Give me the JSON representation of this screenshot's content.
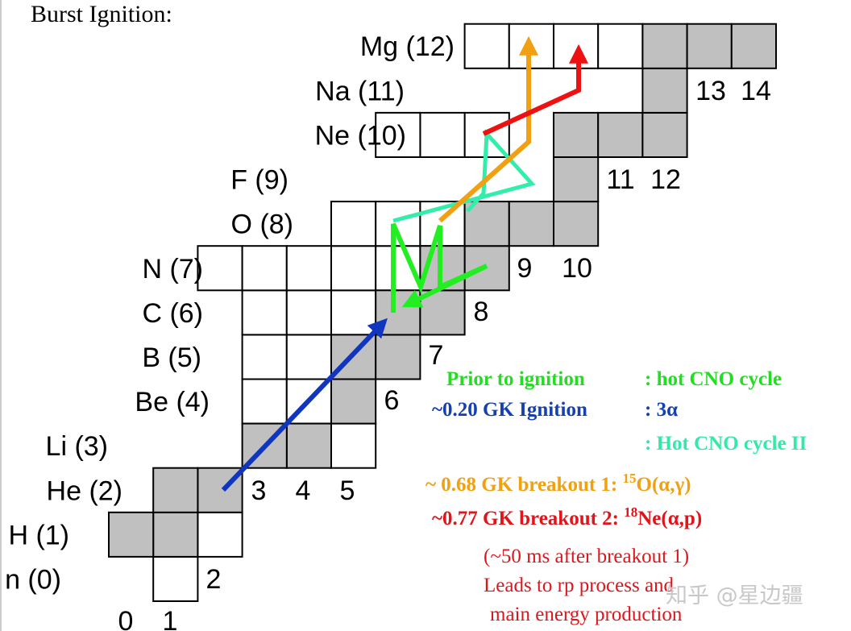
{
  "title": "Burst Ignition:",
  "element_labels": [
    "n (0)",
    "H (1)",
    "He (2)",
    "Li (3)",
    "Be (4)",
    "B (5)",
    "C (6)",
    "N (7)",
    "O (8)",
    "F (9)",
    "Ne (10)",
    "Na (11)",
    "Mg (12)"
  ],
  "neutron_labels": [
    "0",
    "1",
    "2",
    "3",
    "4",
    "5",
    "6",
    "7",
    "8",
    "9",
    "10",
    "11",
    "12",
    "13",
    "14"
  ],
  "legend": [
    {
      "text": "Prior to ignition",
      "desc": ": hot CNO cycle",
      "color": "#22dd22"
    },
    {
      "text": "~0.20 GK Ignition",
      "desc": ": 3α",
      "color": "#1540b0"
    },
    {
      "text": "",
      "desc": ": Hot CNO cycle II",
      "color": "#33e8a8"
    },
    {
      "text": "~ 0.68 GK breakout 1: ",
      "sup": "15",
      "tail": "O(α,γ)",
      "color": "#f0a010"
    },
    {
      "text": "~0.77 GK breakout 2: ",
      "sup": "18",
      "tail": "Ne(α,p)",
      "color": "#e0141a"
    }
  ],
  "notes": [
    "(~50 ms after breakout 1)",
    "Leads to rp process and",
    "main energy production"
  ],
  "watermark": "知乎 @星边疆",
  "colors": {
    "stable": "#c0c0c0",
    "hot_cno": "#22ee22",
    "ignition": "#1036c0",
    "hot_cno_ii": "#33eeaa",
    "breakout1": "#f0a010",
    "breakout2": "#ee1111"
  },
  "chart_data": {
    "type": "diagram",
    "axes": {
      "x": "neutron number N",
      "y": "proton number Z"
    },
    "stable_nuclei": [
      [
        1,
        1
      ],
      [
        0,
        1
      ],
      [
        2,
        2
      ],
      [
        1,
        2
      ],
      [
        4,
        3
      ],
      [
        3,
        3
      ],
      [
        5,
        4
      ],
      [
        5,
        5
      ],
      [
        6,
        5
      ],
      [
        6,
        6
      ],
      [
        7,
        6
      ],
      [
        8,
        7
      ],
      [
        7,
        7
      ],
      [
        8,
        8
      ],
      [
        9,
        8
      ],
      [
        10,
        8
      ],
      [
        10,
        9
      ],
      [
        10,
        10
      ],
      [
        11,
        10
      ],
      [
        12,
        10
      ],
      [
        12,
        11
      ],
      [
        12,
        12
      ],
      [
        13,
        12
      ],
      [
        14,
        12
      ]
    ],
    "unstable_nuclei": [
      [
        2,
        1
      ],
      [
        1,
        0
      ],
      [
        5,
        3
      ],
      [
        3,
        4
      ],
      [
        4,
        4
      ],
      [
        3,
        5
      ],
      [
        4,
        5
      ],
      [
        3,
        6
      ],
      [
        4,
        6
      ],
      [
        5,
        6
      ],
      [
        2,
        7
      ],
      [
        3,
        7
      ],
      [
        4,
        7
      ],
      [
        5,
        7
      ],
      [
        6,
        7
      ],
      [
        5,
        8
      ],
      [
        6,
        8
      ],
      [
        7,
        8
      ],
      [
        8,
        10
      ],
      [
        7,
        10
      ],
      [
        6,
        10
      ],
      [
        8,
        12
      ],
      [
        9,
        12
      ],
      [
        10,
        12
      ],
      [
        11,
        12
      ]
    ],
    "paths": [
      {
        "name": "ignition",
        "points": [
          [
            2.5,
            2.5
          ],
          [
            6.8,
            6.6
          ]
        ]
      },
      {
        "name": "hot_cno",
        "points": [
          [
            6.8,
            6.3
          ],
          [
            6.8,
            7.6
          ],
          [
            7.3,
            6.6
          ],
          [
            7.9,
            6.9
          ],
          [
            8.0,
            7.7
          ],
          [
            8.6,
            7.1
          ],
          [
            7.1,
            6.5
          ]
        ]
      },
      {
        "name": "hot_cno_ii",
        "points": [
          [
            6.8,
            7.7
          ],
          [
            9.6,
            8.9
          ],
          [
            8.6,
            8.4
          ],
          [
            8.9,
            9.6
          ],
          [
            8.5,
            10.2
          ],
          [
            8.6,
            10.0
          ]
        ]
      },
      {
        "name": "breakout1",
        "points": [
          [
            7.8,
            7.8
          ],
          [
            9.6,
            9.4
          ],
          [
            9.6,
            10.9
          ],
          [
            9.4,
            11.8
          ],
          [
            9.4,
            12.9
          ]
        ]
      },
      {
        "name": "breakout2",
        "points": [
          [
            8.6,
            10.1
          ],
          [
            10.2,
            10.6
          ],
          [
            10.2,
            12.9
          ]
        ]
      }
    ]
  }
}
